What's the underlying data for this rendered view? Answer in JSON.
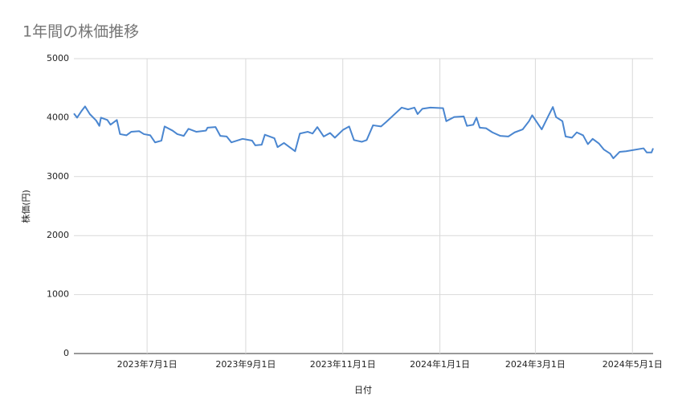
{
  "chart_data": {
    "type": "line",
    "title": "1年間の株価推移",
    "x_label": "日付",
    "y_label": "株価(円)",
    "x": [
      "2023-05-16",
      "2023-05-18",
      "2023-05-21",
      "2023-05-23",
      "2023-05-26",
      "2023-05-30",
      "2023-06-01",
      "2023-06-02",
      "2023-06-06",
      "2023-06-08",
      "2023-06-12",
      "2023-06-14",
      "2023-06-18",
      "2023-06-21",
      "2023-06-26",
      "2023-06-29",
      "2023-07-03",
      "2023-07-06",
      "2023-07-10",
      "2023-07-12",
      "2023-07-17",
      "2023-07-20",
      "2023-07-24",
      "2023-07-27",
      "2023-08-01",
      "2023-08-07",
      "2023-08-08",
      "2023-08-13",
      "2023-08-16",
      "2023-08-20",
      "2023-08-23",
      "2023-08-30",
      "2023-09-05",
      "2023-09-07",
      "2023-09-11",
      "2023-09-13",
      "2023-09-19",
      "2023-09-21",
      "2023-09-25",
      "2023-09-29",
      "2023-10-02",
      "2023-10-05",
      "2023-10-10",
      "2023-10-13",
      "2023-10-16",
      "2023-10-20",
      "2023-10-24",
      "2023-10-27",
      "2023-11-01",
      "2023-11-05",
      "2023-11-08",
      "2023-11-13",
      "2023-11-16",
      "2023-11-20",
      "2023-11-25",
      "2023-11-28",
      "2023-12-02",
      "2023-12-08",
      "2023-12-12",
      "2023-12-16",
      "2023-12-18",
      "2023-12-21",
      "2023-12-26",
      "2024-01-03",
      "2024-01-05",
      "2024-01-10",
      "2024-01-16",
      "2024-01-18",
      "2024-01-22",
      "2024-01-24",
      "2024-01-26",
      "2024-01-30",
      "2024-02-03",
      "2024-02-08",
      "2024-02-13",
      "2024-02-17",
      "2024-02-22",
      "2024-02-26",
      "2024-02-28",
      "2024-03-05",
      "2024-03-09",
      "2024-03-12",
      "2024-03-14",
      "2024-03-18",
      "2024-03-20",
      "2024-03-24",
      "2024-03-27",
      "2024-03-31",
      "2024-04-03",
      "2024-04-06",
      "2024-04-10",
      "2024-04-13",
      "2024-04-17",
      "2024-04-19",
      "2024-04-23",
      "2024-04-27",
      "2024-05-08",
      "2024-05-10",
      "2024-05-13",
      "2024-05-14"
    ],
    "series": [
      {
        "name": "株価",
        "color": "#4a86d0",
        "values": [
          4070,
          4000,
          4120,
          4190,
          4060,
          3950,
          3860,
          4000,
          3960,
          3880,
          3960,
          3720,
          3700,
          3760,
          3770,
          3720,
          3700,
          3580,
          3610,
          3850,
          3780,
          3720,
          3690,
          3810,
          3760,
          3780,
          3830,
          3840,
          3690,
          3680,
          3580,
          3640,
          3610,
          3530,
          3540,
          3710,
          3650,
          3500,
          3570,
          3490,
          3430,
          3730,
          3760,
          3730,
          3840,
          3680,
          3740,
          3660,
          3790,
          3850,
          3620,
          3590,
          3620,
          3870,
          3850,
          3920,
          4020,
          4170,
          4140,
          4170,
          4060,
          4150,
          4170,
          4160,
          3940,
          4010,
          4020,
          3860,
          3880,
          4000,
          3830,
          3820,
          3750,
          3690,
          3680,
          3750,
          3800,
          3940,
          4040,
          3800,
          4020,
          4180,
          4010,
          3940,
          3680,
          3660,
          3750,
          3700,
          3550,
          3640,
          3560,
          3460,
          3390,
          3310,
          3420,
          3430,
          3480,
          3410,
          3410,
          3480
        ]
      }
    ],
    "xlim": [
      "2023-05-16",
      "2024-05-14"
    ],
    "xticks": [
      {
        "value": "2023-07-01",
        "label": "2023年7月1日"
      },
      {
        "value": "2023-09-01",
        "label": "2023年9月1日"
      },
      {
        "value": "2023-11-01",
        "label": "2023年11月1日"
      },
      {
        "value": "2024-01-01",
        "label": "2024年1月1日"
      },
      {
        "value": "2024-03-01",
        "label": "2024年3月1日"
      },
      {
        "value": "2024-05-01",
        "label": "2024年5月1日"
      }
    ],
    "ylim": [
      0,
      5000
    ],
    "yticks": [
      0,
      1000,
      2000,
      3000,
      4000,
      5000
    ],
    "grid": true
  }
}
